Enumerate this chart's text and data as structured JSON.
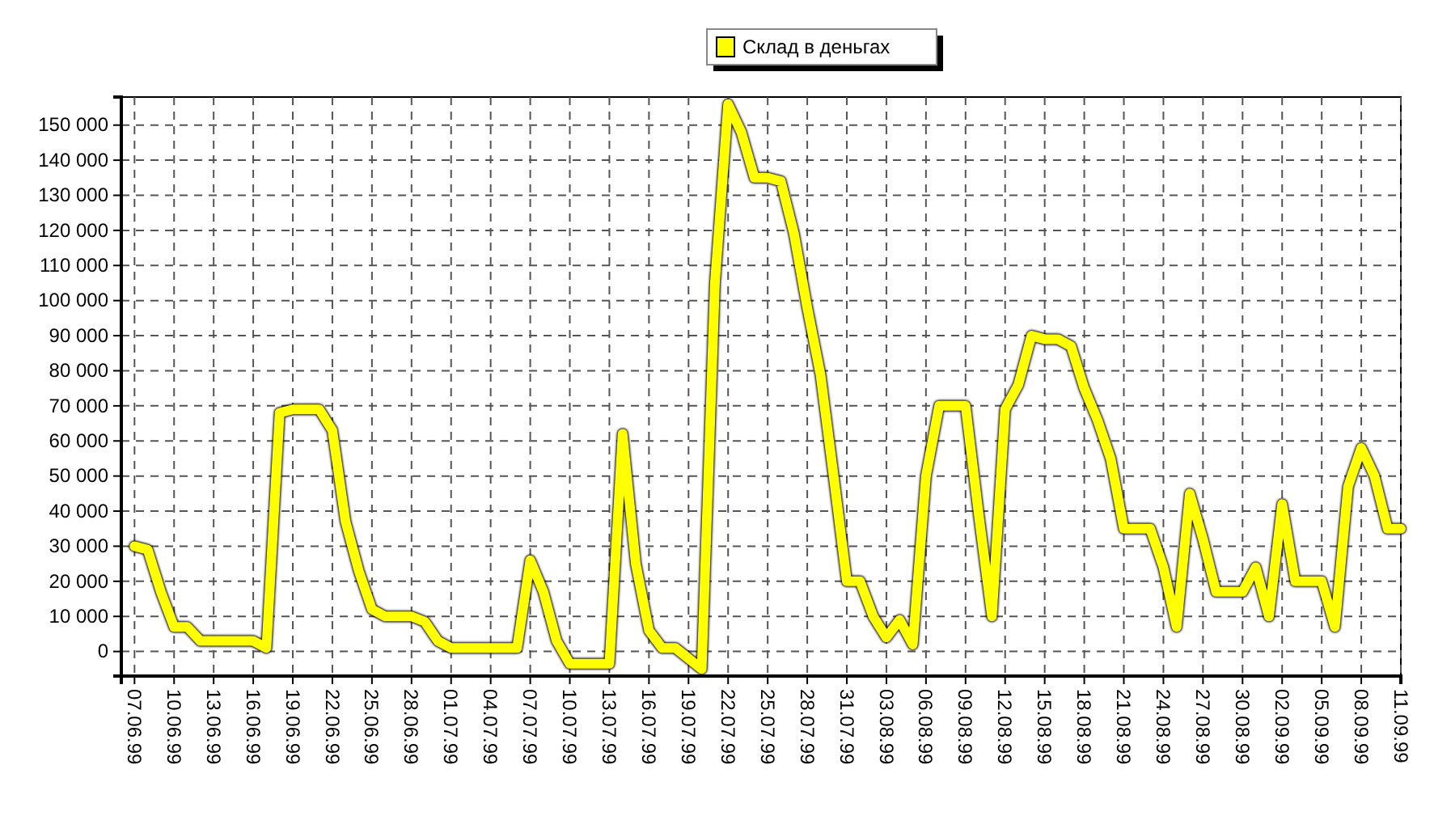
{
  "chart_data": {
    "type": "line",
    "x": [
      "1999-06-07",
      "1999-06-08",
      "1999-06-09",
      "1999-06-10",
      "1999-06-11",
      "1999-06-12",
      "1999-06-13",
      "1999-06-14",
      "1999-06-15",
      "1999-06-16",
      "1999-06-17",
      "1999-06-18",
      "1999-06-19",
      "1999-06-20",
      "1999-06-21",
      "1999-06-22",
      "1999-06-23",
      "1999-06-24",
      "1999-06-25",
      "1999-06-26",
      "1999-06-27",
      "1999-06-28",
      "1999-06-29",
      "1999-06-30",
      "1999-07-01",
      "1999-07-02",
      "1999-07-03",
      "1999-07-04",
      "1999-07-05",
      "1999-07-06",
      "1999-07-07",
      "1999-07-08",
      "1999-07-09",
      "1999-07-10",
      "1999-07-11",
      "1999-07-12",
      "1999-07-13",
      "1999-07-14",
      "1999-07-15",
      "1999-07-16",
      "1999-07-17",
      "1999-07-18",
      "1999-07-19",
      "1999-07-20",
      "1999-07-21",
      "1999-07-22",
      "1999-07-23",
      "1999-07-24",
      "1999-07-25",
      "1999-07-26",
      "1999-07-27",
      "1999-07-28",
      "1999-07-29",
      "1999-07-30",
      "1999-07-31",
      "1999-08-01",
      "1999-08-02",
      "1999-08-03",
      "1999-08-04",
      "1999-08-05",
      "1999-08-06",
      "1999-08-07",
      "1999-08-08",
      "1999-08-09",
      "1999-08-10",
      "1999-08-11",
      "1999-08-12",
      "1999-08-13",
      "1999-08-14",
      "1999-08-15",
      "1999-08-16",
      "1999-08-17",
      "1999-08-18",
      "1999-08-19",
      "1999-08-20",
      "1999-08-21",
      "1999-08-22",
      "1999-08-23",
      "1999-08-24",
      "1999-08-25",
      "1999-08-26",
      "1999-08-27",
      "1999-08-28",
      "1999-08-29",
      "1999-08-30",
      "1999-08-31",
      "1999-09-01",
      "1999-09-02",
      "1999-09-03",
      "1999-09-04",
      "1999-09-05",
      "1999-09-06",
      "1999-09-07",
      "1999-09-08",
      "1999-09-09",
      "1999-09-10",
      "1999-09-11"
    ],
    "series": [
      {
        "name": "Склад в деньгах",
        "color": "#ffff00",
        "values": [
          30000,
          29000,
          17000,
          7000,
          7000,
          3000,
          3000,
          3000,
          3000,
          3000,
          1000,
          68000,
          69000,
          69000,
          69000,
          63000,
          37000,
          23000,
          12000,
          10000,
          10000,
          10000,
          8500,
          3000,
          1000,
          1000,
          1000,
          1000,
          1000,
          1000,
          26000,
          17000,
          3000,
          -3500,
          -3500,
          -3500,
          -3500,
          62000,
          25000,
          6000,
          1000,
          1000,
          -2000,
          -5000,
          105000,
          156000,
          148000,
          135000,
          135000,
          134000,
          119000,
          98000,
          79000,
          50000,
          20000,
          20000,
          10000,
          4000,
          9000,
          2000,
          50000,
          70000,
          70000,
          70000,
          39000,
          10000,
          69000,
          76000,
          90000,
          89000,
          89000,
          87000,
          75000,
          66000,
          55000,
          35000,
          35000,
          35000,
          24000,
          7000,
          45000,
          32000,
          17000,
          17000,
          17000,
          24000,
          10000,
          42000,
          20000,
          20000,
          20000,
          7000,
          47000,
          58000,
          50000,
          35000,
          35000
        ]
      }
    ],
    "xlim": [
      "1999-06-06",
      "1999-09-11"
    ],
    "xticks": [
      {
        "value": "1999-06-07",
        "label": "07.06.99"
      },
      {
        "value": "1999-06-10",
        "label": "10.06.99"
      },
      {
        "value": "1999-06-13",
        "label": "13.06.99"
      },
      {
        "value": "1999-06-16",
        "label": "16.06.99"
      },
      {
        "value": "1999-06-19",
        "label": "19.06.99"
      },
      {
        "value": "1999-06-22",
        "label": "22.06.99"
      },
      {
        "value": "1999-06-25",
        "label": "25.06.99"
      },
      {
        "value": "1999-06-28",
        "label": "28.06.99"
      },
      {
        "value": "1999-07-01",
        "label": "01.07.99"
      },
      {
        "value": "1999-07-04",
        "label": "04.07.99"
      },
      {
        "value": "1999-07-07",
        "label": "07.07.99"
      },
      {
        "value": "1999-07-10",
        "label": "10.07.99"
      },
      {
        "value": "1999-07-13",
        "label": "13.07.99"
      },
      {
        "value": "1999-07-16",
        "label": "16.07.99"
      },
      {
        "value": "1999-07-19",
        "label": "19.07.99"
      },
      {
        "value": "1999-07-22",
        "label": "22.07.99"
      },
      {
        "value": "1999-07-25",
        "label": "25.07.99"
      },
      {
        "value": "1999-07-28",
        "label": "28.07.99"
      },
      {
        "value": "1999-07-31",
        "label": "31.07.99"
      },
      {
        "value": "1999-08-03",
        "label": "03.08.99"
      },
      {
        "value": "1999-08-06",
        "label": "06.08.99"
      },
      {
        "value": "1999-08-09",
        "label": "09.08.99"
      },
      {
        "value": "1999-08-12",
        "label": "12.08.99"
      },
      {
        "value": "1999-08-15",
        "label": "15.08.99"
      },
      {
        "value": "1999-08-18",
        "label": "18.08.99"
      },
      {
        "value": "1999-08-21",
        "label": "21.08.99"
      },
      {
        "value": "1999-08-24",
        "label": "24.08.99"
      },
      {
        "value": "1999-08-27",
        "label": "27.08.99"
      },
      {
        "value": "1999-08-30",
        "label": "30.08.99"
      },
      {
        "value": "1999-09-02",
        "label": "02.09.99"
      },
      {
        "value": "1999-09-05",
        "label": "05.09.99"
      },
      {
        "value": "1999-09-08",
        "label": "08.09.99"
      },
      {
        "value": "1999-09-11",
        "label": "11.09.99"
      }
    ],
    "ylim": [
      -7000,
      158000
    ],
    "yticks": [
      {
        "value": 0,
        "label": "0"
      },
      {
        "value": 10000,
        "label": "10 000"
      },
      {
        "value": 20000,
        "label": "20 000"
      },
      {
        "value": 30000,
        "label": "30 000"
      },
      {
        "value": 40000,
        "label": "40 000"
      },
      {
        "value": 50000,
        "label": "50 000"
      },
      {
        "value": 60000,
        "label": "60 000"
      },
      {
        "value": 70000,
        "label": "70 000"
      },
      {
        "value": 80000,
        "label": "80 000"
      },
      {
        "value": 90000,
        "label": "90 000"
      },
      {
        "value": 100000,
        "label": "100 000"
      },
      {
        "value": 110000,
        "label": "110 000"
      },
      {
        "value": 120000,
        "label": "120 000"
      },
      {
        "value": 130000,
        "label": "130 000"
      },
      {
        "value": 140000,
        "label": "140 000"
      },
      {
        "value": 150000,
        "label": "150 000"
      }
    ],
    "grid": true,
    "legend": "top",
    "marker": "none",
    "line_style": "solid"
  }
}
